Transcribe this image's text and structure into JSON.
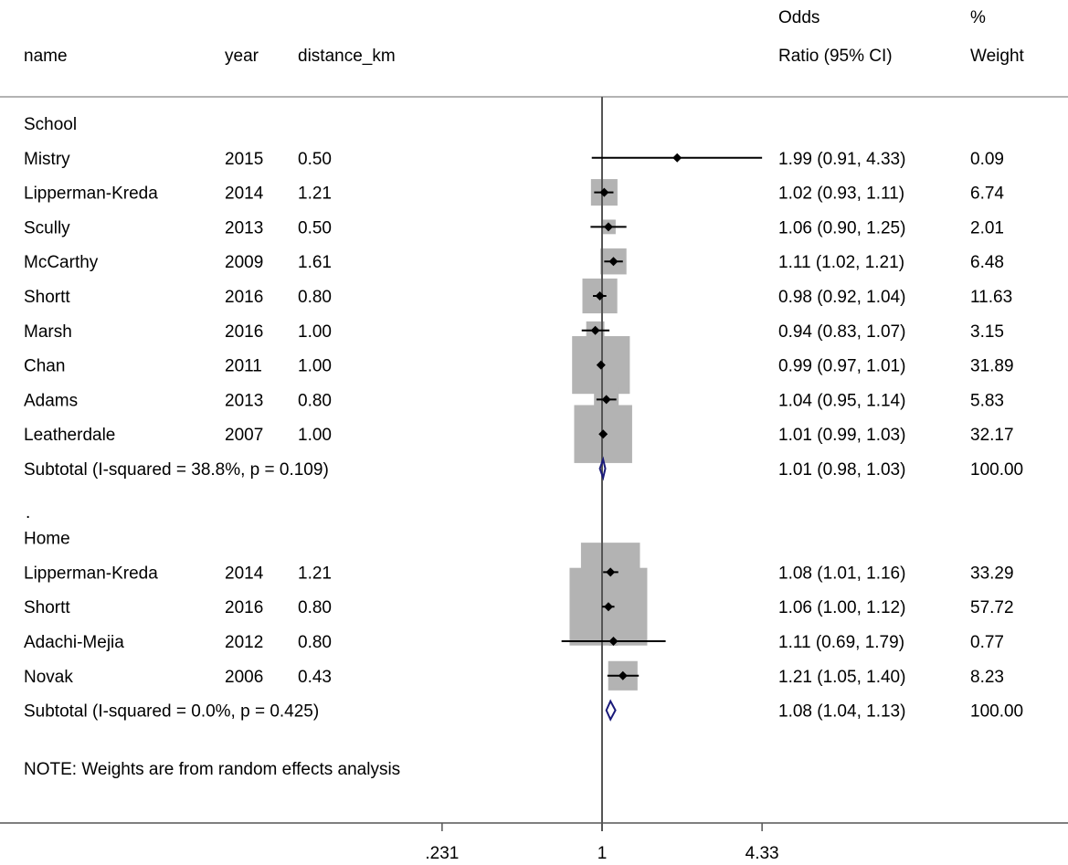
{
  "headers": {
    "name": "name",
    "year": "year",
    "distance": "distance_km",
    "or_line1": "Odds",
    "or_line2": "Ratio (95% CI)",
    "weight_line1": "%",
    "weight_line2": "Weight"
  },
  "note": "NOTE: Weights are from random effects analysis",
  "separator_dot": ".",
  "colors": {
    "marker": "#000000",
    "box": "#b3b3b3",
    "diamond": "#1a1a7a",
    "line": "#000000",
    "axis": "#555555"
  },
  "chart_data": {
    "type": "forest",
    "scale": "log",
    "null_value": 1,
    "xlim": [
      0.231,
      4.33
    ],
    "x_ticks": [
      {
        "value": 0.231,
        "label": ".231"
      },
      {
        "value": 1,
        "label": "1"
      },
      {
        "value": 4.33,
        "label": "4.33"
      }
    ],
    "groups": [
      {
        "label": "School",
        "studies": [
          {
            "name": "Mistry",
            "year": "2015",
            "distance_km": "0.50",
            "or": 1.99,
            "lower": 0.91,
            "upper": 4.33,
            "weight": 0.09,
            "or_ci_text": "1.99 (0.91, 4.33)",
            "weight_text": "0.09"
          },
          {
            "name": "Lipperman-Kreda",
            "year": "2014",
            "distance_km": "1.21",
            "or": 1.02,
            "lower": 0.93,
            "upper": 1.11,
            "weight": 6.74,
            "or_ci_text": "1.02 (0.93, 1.11)",
            "weight_text": "6.74"
          },
          {
            "name": "Scully",
            "year": "2013",
            "distance_km": "0.50",
            "or": 1.06,
            "lower": 0.9,
            "upper": 1.25,
            "weight": 2.01,
            "or_ci_text": "1.06 (0.90, 1.25)",
            "weight_text": "2.01"
          },
          {
            "name": "McCarthy",
            "year": "2009",
            "distance_km": "1.61",
            "or": 1.11,
            "lower": 1.02,
            "upper": 1.21,
            "weight": 6.48,
            "or_ci_text": "1.11 (1.02, 1.21)",
            "weight_text": "6.48"
          },
          {
            "name": "Shortt",
            "year": "2016",
            "distance_km": "0.80",
            "or": 0.98,
            "lower": 0.92,
            "upper": 1.04,
            "weight": 11.63,
            "or_ci_text": "0.98 (0.92, 1.04)",
            "weight_text": "11.63"
          },
          {
            "name": "Marsh",
            "year": "2016",
            "distance_km": "1.00",
            "or": 0.94,
            "lower": 0.83,
            "upper": 1.07,
            "weight": 3.15,
            "or_ci_text": "0.94 (0.83, 1.07)",
            "weight_text": "3.15"
          },
          {
            "name": "Chan",
            "year": "2011",
            "distance_km": "1.00",
            "or": 0.99,
            "lower": 0.97,
            "upper": 1.01,
            "weight": 31.89,
            "or_ci_text": "0.99 (0.97, 1.01)",
            "weight_text": "31.89"
          },
          {
            "name": "Adams",
            "year": "2013",
            "distance_km": "0.80",
            "or": 1.04,
            "lower": 0.95,
            "upper": 1.14,
            "weight": 5.83,
            "or_ci_text": "1.04 (0.95, 1.14)",
            "weight_text": "5.83"
          },
          {
            "name": "Leatherdale",
            "year": "2007",
            "distance_km": "1.00",
            "or": 1.01,
            "lower": 0.99,
            "upper": 1.03,
            "weight": 32.17,
            "or_ci_text": "1.01 (0.99, 1.03)",
            "weight_text": "32.17"
          }
        ],
        "subtotal": {
          "label": "Subtotal  (I-squared = 38.8%, p = 0.109)",
          "or": 1.01,
          "lower": 0.98,
          "upper": 1.03,
          "or_ci_text": "1.01 (0.98, 1.03)",
          "weight_text": "100.00"
        }
      },
      {
        "label": "Home",
        "studies": [
          {
            "name": "Lipperman-Kreda",
            "year": "2014",
            "distance_km": "1.21",
            "or": 1.08,
            "lower": 1.01,
            "upper": 1.16,
            "weight": 33.29,
            "or_ci_text": "1.08 (1.01, 1.16)",
            "weight_text": "33.29"
          },
          {
            "name": "Shortt",
            "year": "2016",
            "distance_km": "0.80",
            "or": 1.06,
            "lower": 1.0,
            "upper": 1.12,
            "weight": 57.72,
            "or_ci_text": "1.06 (1.00, 1.12)",
            "weight_text": "57.72"
          },
          {
            "name": "Adachi-Mejia",
            "year": "2012",
            "distance_km": "0.80",
            "or": 1.11,
            "lower": 0.69,
            "upper": 1.79,
            "weight": 0.77,
            "or_ci_text": "1.11 (0.69, 1.79)",
            "weight_text": "0.77"
          },
          {
            "name": "Novak",
            "year": "2006",
            "distance_km": "0.43",
            "or": 1.21,
            "lower": 1.05,
            "upper": 1.4,
            "weight": 8.23,
            "or_ci_text": "1.21 (1.05, 1.40)",
            "weight_text": "8.23"
          }
        ],
        "subtotal": {
          "label": "Subtotal  (I-squared = 0.0%, p = 0.425)",
          "or": 1.08,
          "lower": 1.04,
          "upper": 1.13,
          "or_ci_text": "1.08 (1.04, 1.13)",
          "weight_text": "100.00"
        }
      }
    ]
  }
}
